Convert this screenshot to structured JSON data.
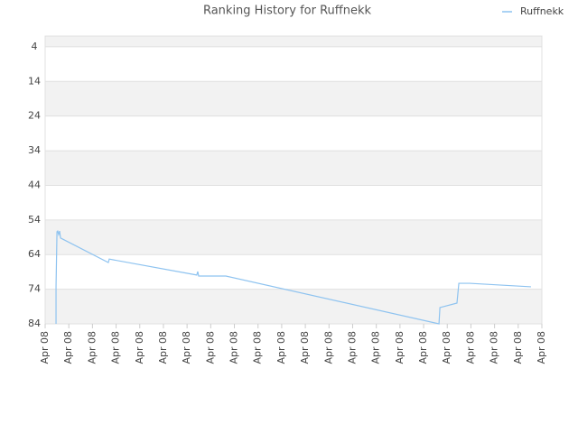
{
  "chart_data": {
    "type": "line",
    "title": "Ranking History for Ruffnekk",
    "x": [
      0.46,
      0.46,
      0.5,
      0.53,
      0.57,
      0.61,
      0.65,
      2.67,
      2.71,
      6.41,
      6.45,
      6.49,
      7.64,
      16.65,
      16.69,
      17.41,
      17.49,
      17.95,
      20.54
    ],
    "series": [
      {
        "name": "Ruffnekk",
        "color": "#8ec3f0",
        "values": [
          84,
          73.3,
          57.4,
          57.2,
          58.2,
          57.2,
          59.2,
          66.3,
          65.3,
          69.9,
          68.9,
          70.2,
          70.2,
          84,
          79.3,
          78,
          72.3,
          72.3,
          73.3
        ]
      }
    ],
    "xlim": [
      0,
      21
    ],
    "xticks": [
      {
        "value": 0,
        "label": "Apr 08"
      },
      {
        "value": 1,
        "label": "Apr 08"
      },
      {
        "value": 2,
        "label": "Apr 08"
      },
      {
        "value": 3,
        "label": "Apr 08"
      },
      {
        "value": 4,
        "label": "Apr 08"
      },
      {
        "value": 5,
        "label": "Apr 08"
      },
      {
        "value": 6,
        "label": "Apr 08"
      },
      {
        "value": 7,
        "label": "Apr 08"
      },
      {
        "value": 8,
        "label": "Apr 08"
      },
      {
        "value": 9,
        "label": "Apr 08"
      },
      {
        "value": 10,
        "label": "Apr 08"
      },
      {
        "value": 11,
        "label": "Apr 08"
      },
      {
        "value": 12,
        "label": "Apr 08"
      },
      {
        "value": 13,
        "label": "Apr 08"
      },
      {
        "value": 14,
        "label": "Apr 08"
      },
      {
        "value": 15,
        "label": "Apr 08"
      },
      {
        "value": 16,
        "label": "Apr 08"
      },
      {
        "value": 17,
        "label": "Apr 08"
      },
      {
        "value": 18,
        "label": "Apr 08"
      },
      {
        "value": 19,
        "label": "Apr 08"
      },
      {
        "value": 20,
        "label": "Apr 08"
      },
      {
        "value": 21,
        "label": "Apr 08"
      }
    ],
    "ylim": [
      84,
      0.9
    ],
    "yticks": [
      4,
      14,
      24,
      34,
      44,
      54,
      64,
      74,
      84
    ],
    "grid": true
  }
}
